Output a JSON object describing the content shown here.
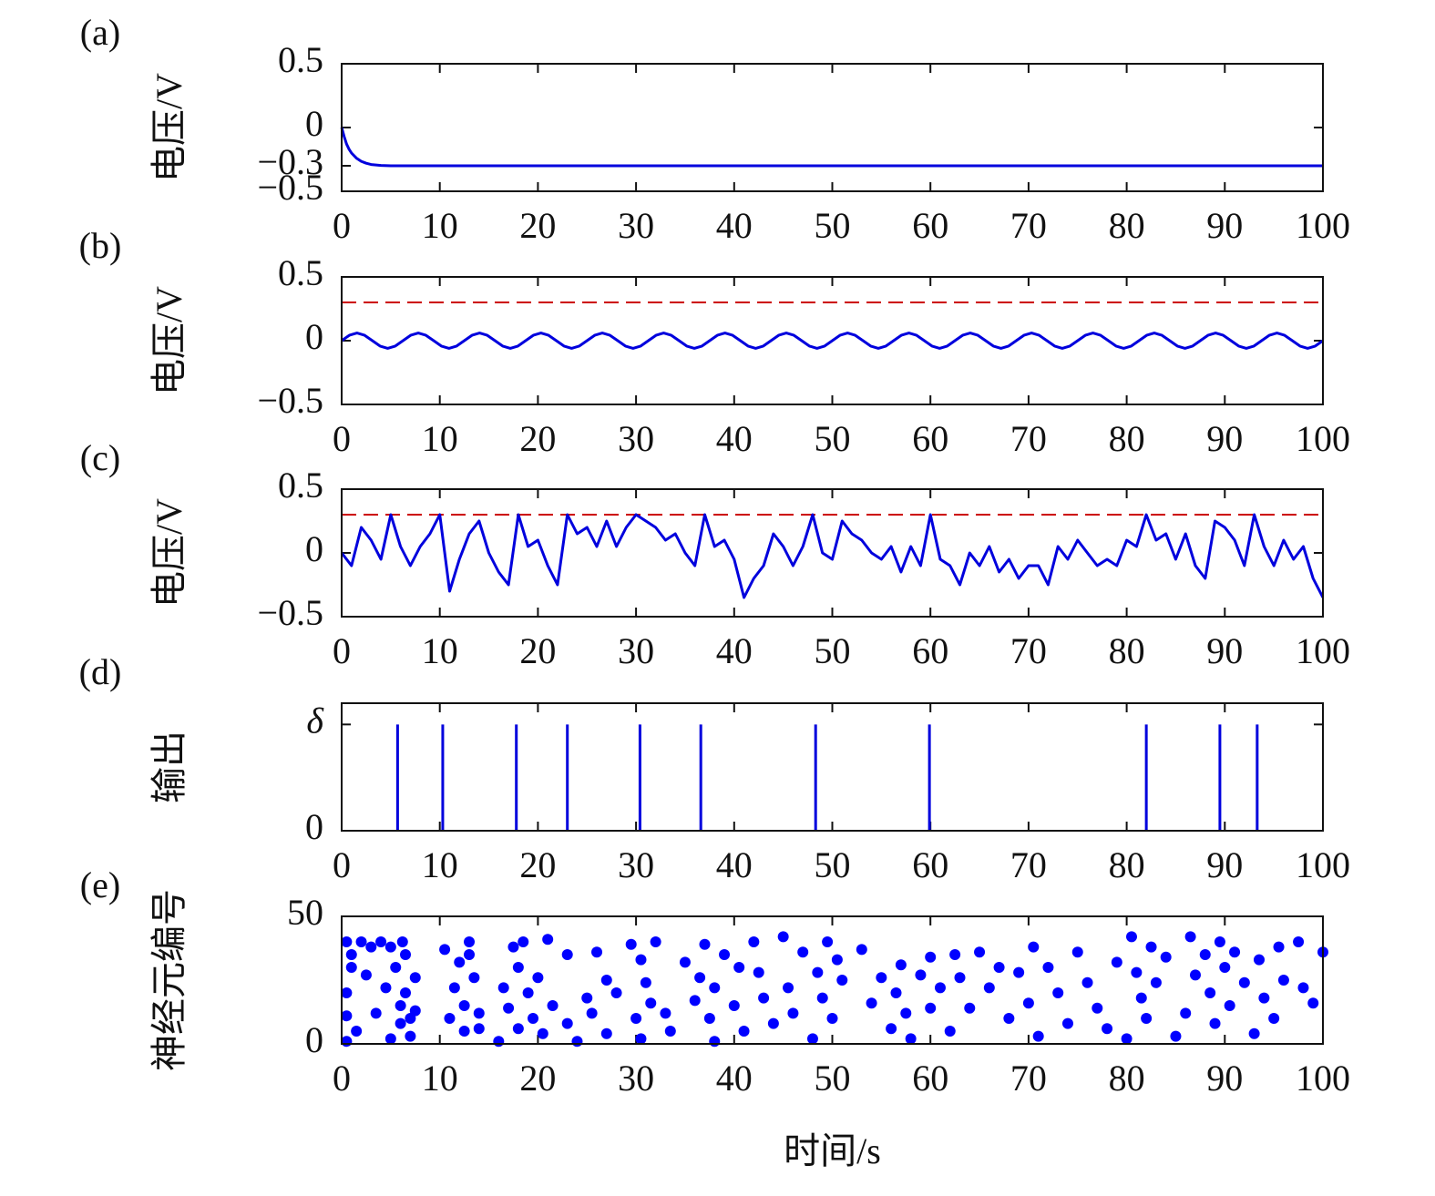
{
  "chart_data": [
    {
      "type": "line",
      "panel_label": "(a)",
      "ylabel": "电压/V",
      "color": "#0000dd",
      "xlim": [
        0,
        100
      ],
      "xticks": [
        0,
        10,
        20,
        30,
        40,
        50,
        60,
        70,
        80,
        90,
        100
      ],
      "ylim": [
        -0.5,
        0.5
      ],
      "yticks": [
        {
          "value": -0.5,
          "label": "−0.5"
        },
        {
          "value": -0.3,
          "label": "−0.3"
        },
        0,
        0.5
      ],
      "x": [
        0,
        0.25,
        0.5,
        0.75,
        1,
        1.5,
        2,
        2.5,
        3,
        4,
        5,
        6,
        8,
        100
      ],
      "values": [
        0,
        -0.07,
        -0.13,
        -0.17,
        -0.2,
        -0.24,
        -0.265,
        -0.28,
        -0.29,
        -0.297,
        -0.3,
        -0.3,
        -0.3,
        -0.3
      ]
    },
    {
      "type": "line",
      "panel_label": "(b)",
      "ylabel": "电压/V",
      "color": "#0000dd",
      "threshold": {
        "value": 0.3,
        "color": "#cc0000"
      },
      "xlim": [
        0,
        100
      ],
      "xticks": [
        0,
        10,
        20,
        30,
        40,
        50,
        60,
        70,
        80,
        90,
        100
      ],
      "ylim": [
        -0.5,
        0.5
      ],
      "yticks": [
        {
          "value": -0.5,
          "label": "−0.5"
        },
        0,
        0.5
      ],
      "x": [
        0,
        0.78,
        1.56,
        2.34,
        3.13,
        3.91,
        4.69,
        5.47,
        6.25,
        7.03,
        7.81,
        8.59,
        9.38,
        10.16,
        10.94,
        11.72,
        12.5,
        13.28,
        14.06,
        14.84,
        15.63,
        16.41,
        17.19,
        17.97,
        18.75,
        19.53,
        20.31,
        21.09,
        21.88,
        22.66,
        23.44,
        24.22,
        25,
        25.78,
        26.56,
        27.34,
        28.13,
        28.91,
        29.69,
        30.47,
        31.25,
        32.03,
        32.81,
        33.59,
        34.38,
        35.16,
        35.94,
        36.72,
        37.5,
        38.28,
        39.06,
        39.84,
        40.63,
        41.41,
        42.19,
        42.97,
        43.75,
        44.53,
        45.31,
        46.09,
        46.88,
        47.66,
        48.44,
        49.22,
        50,
        50.78,
        51.56,
        52.34,
        53.13,
        53.91,
        54.69,
        55.47,
        56.25,
        57.03,
        57.81,
        58.59,
        59.38,
        60.16,
        60.94,
        61.72,
        62.5,
        63.28,
        64.06,
        64.84,
        65.63,
        66.41,
        67.19,
        67.97,
        68.75,
        69.53,
        70.31,
        71.09,
        71.88,
        72.66,
        73.44,
        74.22,
        75,
        75.78,
        76.56,
        77.34,
        78.13,
        78.91,
        79.69,
        80.47,
        81.25,
        82.03,
        82.81,
        83.59,
        84.38,
        85.16,
        85.94,
        86.72,
        87.5,
        88.28,
        89.06,
        89.84,
        90.63,
        91.41,
        92.19,
        92.97,
        93.75,
        94.53,
        95.31,
        96.09,
        96.88,
        97.66,
        98.44,
        99.22,
        100
      ],
      "values": [
        0,
        0.042,
        0.06,
        0.042,
        0,
        -0.042,
        -0.06,
        -0.042,
        0,
        0.042,
        0.06,
        0.042,
        0,
        -0.042,
        -0.06,
        -0.042,
        0,
        0.042,
        0.06,
        0.042,
        0,
        -0.042,
        -0.06,
        -0.042,
        0,
        0.042,
        0.06,
        0.042,
        0,
        -0.042,
        -0.06,
        -0.042,
        0,
        0.042,
        0.06,
        0.042,
        0,
        -0.042,
        -0.06,
        -0.042,
        0,
        0.042,
        0.06,
        0.042,
        0,
        -0.042,
        -0.06,
        -0.042,
        0,
        0.042,
        0.06,
        0.042,
        0,
        -0.042,
        -0.06,
        -0.042,
        0,
        0.042,
        0.06,
        0.042,
        0,
        -0.042,
        -0.06,
        -0.042,
        0,
        0.042,
        0.06,
        0.042,
        0,
        -0.042,
        -0.06,
        -0.042,
        0,
        0.042,
        0.06,
        0.042,
        0,
        -0.042,
        -0.06,
        -0.042,
        0,
        0.042,
        0.06,
        0.042,
        0,
        -0.042,
        -0.06,
        -0.042,
        0,
        0.042,
        0.06,
        0.042,
        0,
        -0.042,
        -0.06,
        -0.042,
        0,
        0.042,
        0.06,
        0.042,
        0,
        -0.042,
        -0.06,
        -0.042,
        0,
        0.042,
        0.06,
        0.042,
        0,
        -0.042,
        -0.06,
        -0.042,
        0,
        0.042,
        0.06,
        0.042,
        0,
        -0.042,
        -0.06,
        -0.042,
        0,
        0.042,
        0.06,
        0.042,
        0,
        -0.042,
        -0.06,
        -0.042,
        0
      ]
    },
    {
      "type": "line",
      "panel_label": "(c)",
      "ylabel": "电压/V",
      "color": "#0000dd",
      "threshold": {
        "value": 0.3,
        "color": "#cc0000"
      },
      "xlim": [
        0,
        100
      ],
      "xticks": [
        0,
        10,
        20,
        30,
        40,
        50,
        60,
        70,
        80,
        90,
        100
      ],
      "ylim": [
        -0.5,
        0.5
      ],
      "yticks": [
        {
          "value": -0.5,
          "label": "−0.5"
        },
        0,
        0.5
      ],
      "x": [
        0,
        1,
        2,
        3,
        4,
        5,
        6,
        7,
        8,
        9,
        10,
        11,
        12,
        13,
        14,
        15,
        16,
        17,
        18,
        19,
        20,
        21,
        22,
        23,
        24,
        25,
        26,
        27,
        28,
        29,
        30,
        31,
        32,
        33,
        34,
        35,
        36,
        37,
        38,
        39,
        40,
        41,
        42,
        43,
        44,
        45,
        46,
        47,
        48,
        49,
        50,
        51,
        52,
        53,
        54,
        55,
        56,
        57,
        58,
        59,
        60,
        61,
        62,
        63,
        64,
        65,
        66,
        67,
        68,
        69,
        70,
        71,
        72,
        73,
        74,
        75,
        76,
        77,
        78,
        79,
        80,
        81,
        82,
        83,
        84,
        85,
        86,
        87,
        88,
        89,
        90,
        91,
        92,
        93,
        94,
        95,
        96,
        97,
        98,
        99,
        100
      ],
      "values": [
        0,
        -0.1,
        0.2,
        0.1,
        -0.05,
        0.3,
        0.05,
        -0.1,
        0.05,
        0.15,
        0.3,
        -0.3,
        -0.05,
        0.15,
        0.25,
        0,
        -0.15,
        -0.25,
        0.3,
        0.05,
        0.1,
        -0.1,
        -0.25,
        0.3,
        0.15,
        0.2,
        0.05,
        0.25,
        0.05,
        0.2,
        0.3,
        0.25,
        0.2,
        0.1,
        0.15,
        0,
        -0.1,
        0.3,
        0.05,
        0.1,
        -0.05,
        -0.35,
        -0.2,
        -0.1,
        0.15,
        0.05,
        -0.1,
        0.05,
        0.3,
        0,
        -0.05,
        0.25,
        0.15,
        0.1,
        0,
        -0.05,
        0.05,
        -0.15,
        0.05,
        -0.1,
        0.3,
        -0.05,
        -0.1,
        -0.25,
        0,
        -0.1,
        0.05,
        -0.15,
        -0.05,
        -0.2,
        -0.1,
        -0.1,
        -0.25,
        0.05,
        -0.05,
        0.1,
        0,
        -0.1,
        -0.05,
        -0.1,
        0.1,
        0.05,
        0.3,
        0.1,
        0.15,
        -0.05,
        0.15,
        -0.1,
        -0.2,
        0.25,
        0.2,
        0.1,
        -0.1,
        0.3,
        0.05,
        -0.1,
        0.1,
        -0.05,
        0.05,
        -0.2,
        -0.35
      ]
    },
    {
      "type": "spike",
      "panel_label": "(d)",
      "ylabel": "输出",
      "color": "#0000dd",
      "xlim": [
        0,
        100
      ],
      "xticks": [
        0,
        10,
        20,
        30,
        40,
        50,
        60,
        70,
        80,
        90,
        100
      ],
      "ylim": [
        0,
        1.2
      ],
      "yticks": [
        0,
        {
          "value": 1,
          "label": "δ"
        }
      ],
      "x": [
        5.7,
        10.3,
        17.8,
        23,
        30.4,
        36.6,
        48.3,
        59.9,
        82,
        89.5,
        93.3
      ],
      "values": [
        1,
        1,
        1,
        1,
        1,
        1,
        1,
        1,
        1,
        1,
        1
      ]
    },
    {
      "type": "scatter",
      "panel_label": "(e)",
      "ylabel": "神经元编号",
      "xlabel": "时间/s",
      "color": "#0000ff",
      "xlim": [
        0,
        100
      ],
      "xticks": [
        0,
        10,
        20,
        30,
        40,
        50,
        60,
        70,
        80,
        90,
        100
      ],
      "ylim": [
        0,
        50
      ],
      "yticks": [
        0,
        50
      ],
      "x": [
        0.5,
        0.5,
        0.5,
        0.5,
        1,
        1,
        1.5,
        2,
        2.5,
        3,
        3.5,
        4,
        4.5,
        5,
        5,
        5.5,
        6,
        6,
        6.5,
        6.5,
        7,
        7,
        7.5,
        7.5,
        6.2,
        10.5,
        11,
        11.5,
        12,
        12.5,
        12.5,
        13,
        13.5,
        14,
        14,
        13,
        16,
        16.5,
        17,
        17.5,
        18,
        18,
        18.5,
        19,
        19.5,
        20,
        20.5,
        21,
        21.5,
        23,
        23,
        24,
        25,
        25.5,
        26,
        27,
        27,
        28,
        29.5,
        30,
        30.5,
        30.5,
        31,
        31.5,
        32,
        33,
        33.5,
        35,
        36,
        36.5,
        37,
        37.5,
        38,
        38,
        39,
        40,
        40.5,
        41,
        42,
        42.5,
        43,
        44,
        45,
        45.5,
        46,
        47,
        48,
        48.5,
        49,
        49.5,
        50,
        50.5,
        51,
        53,
        54,
        55,
        56,
        56.5,
        57,
        57.5,
        58,
        59,
        60,
        60,
        61,
        62,
        62.5,
        63,
        64,
        65,
        66,
        67,
        68,
        69,
        70,
        70.5,
        71,
        72,
        73,
        74,
        75,
        76,
        77,
        78,
        79,
        80,
        80.5,
        81,
        81.5,
        82,
        82.5,
        83,
        84,
        85,
        86,
        86.5,
        87,
        88,
        88.5,
        89,
        89.5,
        90,
        90.5,
        91,
        92,
        93,
        93.5,
        94,
        95,
        95.5,
        96,
        97.5,
        98,
        99,
        100
      ],
      "y": [
        1,
        11,
        20,
        40,
        30,
        35,
        5,
        40,
        27,
        38,
        12,
        40,
        22,
        38,
        2,
        30,
        15,
        8,
        35,
        20,
        10,
        3,
        26,
        13,
        40,
        37,
        10,
        22,
        32,
        15,
        5,
        40,
        26,
        12,
        6,
        35,
        1,
        22,
        14,
        38,
        6,
        30,
        40,
        20,
        10,
        26,
        4,
        41,
        15,
        8,
        35,
        1,
        18,
        12,
        36,
        25,
        4,
        20,
        39,
        10,
        2,
        33,
        24,
        16,
        40,
        12,
        5,
        32,
        17,
        26,
        39,
        10,
        22,
        1,
        35,
        15,
        30,
        5,
        40,
        28,
        18,
        8,
        42,
        22,
        12,
        36,
        2,
        28,
        18,
        40,
        10,
        33,
        25,
        37,
        16,
        26,
        6,
        20,
        31,
        12,
        2,
        27,
        14,
        34,
        22,
        5,
        35,
        26,
        14,
        36,
        22,
        30,
        10,
        28,
        16,
        38,
        3,
        30,
        20,
        8,
        36,
        24,
        14,
        6,
        32,
        2,
        42,
        28,
        18,
        10,
        38,
        24,
        34,
        3,
        12,
        42,
        27,
        35,
        20,
        8,
        40,
        30,
        15,
        36,
        24,
        4,
        33,
        18,
        10,
        38,
        25,
        40,
        22,
        16,
        36
      ]
    }
  ]
}
